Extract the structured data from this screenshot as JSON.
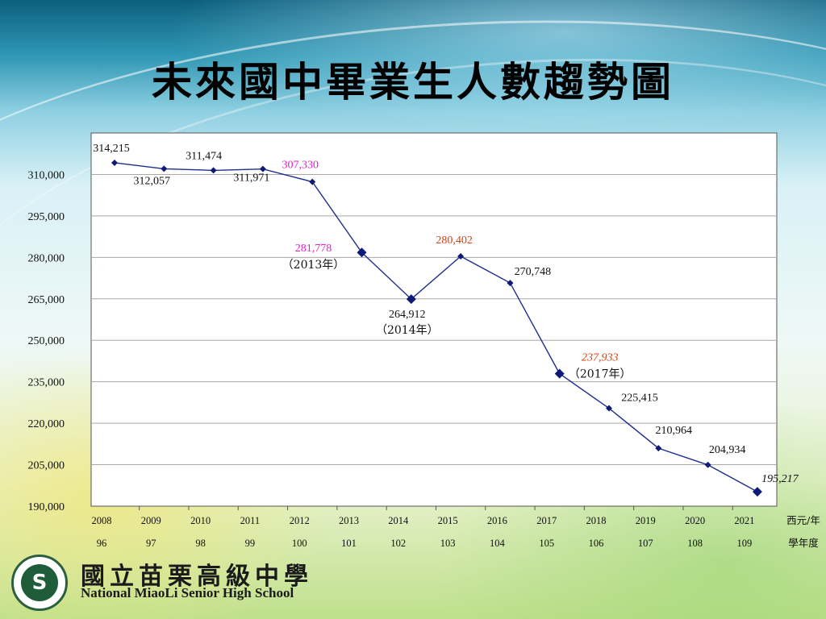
{
  "slide": {
    "title": "未來國中畢業生人數趨勢圖",
    "school_name_zh": "國立苗栗高級中學",
    "school_name_en": "National MiaoLi Senior High School"
  },
  "colors": {
    "line": "#1f2f8f",
    "marker": "#0d1a78",
    "label_default": "#111111",
    "label_magenta": "#e020c8",
    "label_orange": "#d8410c",
    "plot_bg": "#ffffff",
    "plot_border": "#555555",
    "grid": "#a8a8a8"
  },
  "chart_data": {
    "type": "line",
    "title": "未來國中畢業生人數趨勢圖",
    "x": [
      2008,
      2009,
      2010,
      2011,
      2012,
      2013,
      2014,
      2015,
      2016,
      2017,
      2018,
      2019,
      2020,
      2021
    ],
    "categories": [
      "2008",
      "2009",
      "2010",
      "2011",
      "2012",
      "2013",
      "2014",
      "2015",
      "2016",
      "2017",
      "2018",
      "2019",
      "2020",
      "2021"
    ],
    "academic_years": [
      "96",
      "97",
      "98",
      "99",
      "100",
      "101",
      "102",
      "103",
      "104",
      "105",
      "106",
      "107",
      "108",
      "109"
    ],
    "values": [
      314215,
      312057,
      311474,
      311971,
      307330,
      281778,
      264912,
      280402,
      270748,
      237933,
      225415,
      210964,
      204934,
      195217
    ],
    "data_labels": [
      "314,215",
      "312,057",
      "311,474",
      "311,971",
      "307,330",
      "281,778",
      "264,912",
      "280,402",
      "270,748",
      "237,933",
      "225,415",
      "210,964",
      "204,934",
      "195,217"
    ],
    "label_styles": [
      "default",
      "default",
      "default",
      "default",
      "magenta",
      "magenta",
      "default",
      "orange",
      "default",
      "orange-italic",
      "default",
      "default",
      "default",
      "italic"
    ],
    "year_notes": [
      "",
      "",
      "",
      "",
      "",
      "（2013年）",
      "（2014年）",
      "",
      "",
      "（2017年）",
      "",
      "",
      "",
      ""
    ],
    "ylim": [
      190000,
      325000
    ],
    "yticks": [
      190000,
      205000,
      220000,
      235000,
      250000,
      265000,
      280000,
      295000,
      310000
    ],
    "ytick_labels": [
      "190,000",
      "205,000",
      "220,000",
      "235,000",
      "250,000",
      "265,000",
      "280,000",
      "295,000",
      "310,000"
    ],
    "x_unit_label": "西元/年",
    "academic_unit_label": "學年度",
    "grid": true,
    "legend": false
  }
}
